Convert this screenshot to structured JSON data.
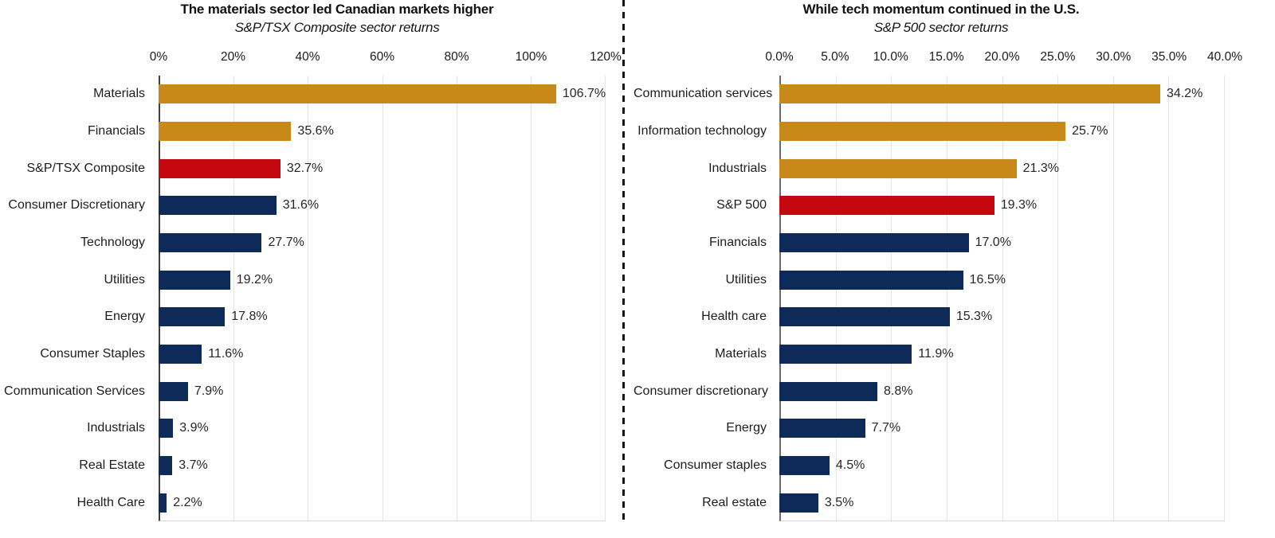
{
  "palette": {
    "gold": "#C8891A",
    "red": "#C50710",
    "navy": "#0D2A58",
    "grid": "#E4E4E4",
    "left_axis": "#3F3F3F",
    "right_axis": "#6B6B6B",
    "text": "#1F1F1F"
  },
  "divider": {
    "type": "vertical-dashed-line",
    "color": "#141414"
  },
  "chart_data": [
    {
      "type": "bar",
      "orientation": "horizontal",
      "title": "The materials sector led Canadian markets higher",
      "subtitle": "S&P/TSX Composite sector returns",
      "xlabel": "",
      "ylabel": "",
      "xlim": [
        0,
        120
      ],
      "grid": true,
      "legend": false,
      "x_ticks": [
        "0%",
        "20%",
        "40%",
        "60%",
        "80%",
        "100%",
        "120%"
      ],
      "categories": [
        "Materials",
        "Financials",
        "S&P/TSX Composite",
        "Consumer Discretionary",
        "Technology",
        "Utilities",
        "Energy",
        "Consumer Staples",
        "Communication Services",
        "Industrials",
        "Real Estate",
        "Health Care"
      ],
      "values": [
        106.7,
        35.6,
        32.7,
        31.6,
        27.7,
        19.2,
        17.8,
        11.6,
        7.9,
        3.9,
        3.7,
        2.2
      ],
      "value_labels": [
        "106.7%",
        "35.6%",
        "32.7%",
        "31.6%",
        "27.7%",
        "19.2%",
        "17.8%",
        "11.6%",
        "7.9%",
        "3.9%",
        "3.7%",
        "2.2%"
      ],
      "bar_colors": [
        "gold",
        "gold",
        "red",
        "navy",
        "navy",
        "navy",
        "navy",
        "navy",
        "navy",
        "navy",
        "navy",
        "navy"
      ]
    },
    {
      "type": "bar",
      "orientation": "horizontal",
      "title": "While tech momentum continued in the U.S.",
      "subtitle": "S&P 500 sector returns",
      "xlabel": "",
      "ylabel": "",
      "xlim": [
        0,
        40
      ],
      "grid": true,
      "legend": false,
      "x_ticks": [
        "0.0%",
        "5.0%",
        "10.0%",
        "15.0%",
        "20.0%",
        "25.0%",
        "30.0%",
        "35.0%",
        "40.0%"
      ],
      "categories": [
        "Communication services",
        "Information technology",
        "Industrials",
        "S&P 500",
        "Financials",
        "Utilities",
        "Health care",
        "Materials",
        "Consumer discretionary",
        "Energy",
        "Consumer staples",
        "Real estate"
      ],
      "values": [
        34.2,
        25.7,
        21.3,
        19.3,
        17.0,
        16.5,
        15.3,
        11.9,
        8.8,
        7.7,
        4.5,
        3.5
      ],
      "value_labels": [
        "34.2%",
        "25.7%",
        "21.3%",
        "19.3%",
        "17.0%",
        "16.5%",
        "15.3%",
        "11.9%",
        "8.8%",
        "7.7%",
        "4.5%",
        "3.5%"
      ],
      "bar_colors": [
        "gold",
        "gold",
        "gold",
        "red",
        "navy",
        "navy",
        "navy",
        "navy",
        "navy",
        "navy",
        "navy",
        "navy"
      ]
    }
  ]
}
